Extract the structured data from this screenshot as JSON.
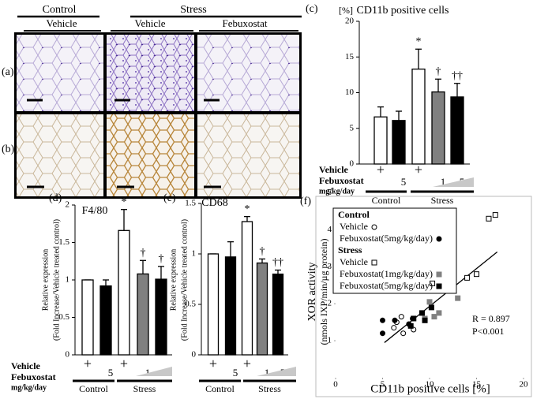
{
  "micrographs": {
    "groups": [
      "Control",
      "Stress"
    ],
    "treatments": [
      "Vehicle",
      "Vehicle",
      "Febuxostat"
    ],
    "rows": [
      "(a)",
      "(b)"
    ]
  },
  "chart_data": [
    {
      "type": "bar",
      "panel_label": "(c)",
      "title": "CD11b positive cells",
      "y_unit": "[%]",
      "row_labels": [
        "Vehicle",
        "Febuxostat",
        "mg/kg/day"
      ],
      "groups": [
        "Control",
        "Stress"
      ],
      "categories": [
        "+",
        "5",
        "+",
        "1",
        "5"
      ],
      "values": [
        6.6,
        6.1,
        13.3,
        10.1,
        9.4
      ],
      "errors": [
        1.4,
        1.3,
        2.8,
        1.8,
        1.9
      ],
      "colors": [
        "#ffffff",
        "#000000",
        "#ffffff",
        "#808080",
        "#000000"
      ],
      "annotations": [
        null,
        null,
        "*",
        "†",
        "††"
      ],
      "ylim": [
        0,
        20
      ],
      "yticks": [
        0,
        5,
        10,
        15,
        20
      ]
    },
    {
      "type": "bar",
      "panel_label": "(d)",
      "title": "F4/80",
      "ylabel": [
        "Relative expression",
        "(Fold Increase/Vehicle treated control)"
      ],
      "row_labels": [
        "Vehicle",
        "Febuxostat",
        "mg/kg/day"
      ],
      "groups": [
        "Control",
        "Stress"
      ],
      "categories": [
        "+",
        "5",
        "+",
        "1",
        "5"
      ],
      "values": [
        1.0,
        0.92,
        1.66,
        1.08,
        1.01
      ],
      "errors": [
        0,
        0.08,
        0.28,
        0.18,
        0.17
      ],
      "colors": [
        "#ffffff",
        "#000000",
        "#ffffff",
        "#808080",
        "#000000"
      ],
      "annotations": [
        null,
        null,
        "*",
        "†",
        "†"
      ],
      "ylim": [
        0,
        2
      ],
      "yticks": [
        0,
        0.5,
        1,
        1.5,
        2
      ]
    },
    {
      "type": "bar",
      "panel_label": "(e)",
      "title": "CD68",
      "ylabel": [
        "Relative expression",
        "(Fold Increase/Vehicle treated control)"
      ],
      "groups": [
        "Control",
        "Stress"
      ],
      "categories": [
        "+",
        "5",
        "+",
        "1",
        "5"
      ],
      "values": [
        1.0,
        0.97,
        1.32,
        0.91,
        0.8
      ],
      "errors": [
        0,
        0.15,
        0.05,
        0.04,
        0.04
      ],
      "colors": [
        "#ffffff",
        "#000000",
        "#ffffff",
        "#808080",
        "#000000"
      ],
      "annotations": [
        null,
        null,
        "*",
        "†",
        "††"
      ],
      "ylim": [
        0,
        1.5
      ],
      "yticks": [
        0,
        0.5,
        1,
        1.5
      ]
    },
    {
      "type": "scatter",
      "panel_label": "(f)",
      "xlabel": "CD11b positive cells [%]",
      "ylabel": [
        "XOR activity",
        "(nmols IXP/min/µg protein)"
      ],
      "xlim": [
        0,
        20
      ],
      "xticks": [
        0,
        5,
        10,
        15,
        20
      ],
      "ylim": [
        0,
        5.5
      ],
      "yticks": [
        1,
        2,
        3,
        4,
        5
      ],
      "groups": [
        {
          "name": "Control",
          "series": [
            {
              "name": "Vehicle",
              "marker": "circle",
              "color": "#000000",
              "filled": false,
              "x": [
                7,
                6.2,
                7.2,
                8.3,
                6.5
              ],
              "y": [
                1.65,
                1.35,
                1.2,
                1.3,
                1.5
              ]
            },
            {
              "name": "Febuxostat(5mg/kg/day)",
              "marker": "circle",
              "color": "#000000",
              "filled": true,
              "x": [
                5,
                5,
                6.3,
                8.2,
                7.8
              ],
              "y": [
                1.55,
                1.2,
                1.55,
                1.6,
                1.45
              ]
            }
          ]
        },
        {
          "name": "Stress",
          "series": [
            {
              "name": "Vehicle",
              "marker": "square",
              "color": "#000000",
              "filled": false,
              "x": [
                10.3,
                14,
                15,
                16.3,
                17
              ],
              "y": [
                2.55,
                2.7,
                2.8,
                4.3,
                4.4
              ]
            },
            {
              "name": "Febuxostat(1mg/kg/day)",
              "marker": "square",
              "color": "#808080",
              "filled": true,
              "x": [
                10,
                11,
                13,
                9.5,
                10.5
              ],
              "y": [
                2.05,
                1.75,
                2.15,
                1.6,
                1.65
              ]
            },
            {
              "name": "Febuxostat(5mg/kg/day)",
              "marker": "square",
              "color": "#000000",
              "filled": true,
              "x": [
                8.3,
                9.2,
                10.2,
                8,
                9.5
              ],
              "y": [
                1.6,
                1.75,
                1.9,
                1.4,
                1.55
              ]
            }
          ]
        }
      ],
      "trendline": {
        "x": [
          5.2,
          17.2
        ],
        "y": [
          0.95,
          3.4
        ]
      },
      "annotations": [
        "R = 0.897",
        "P<0.001"
      ]
    }
  ]
}
